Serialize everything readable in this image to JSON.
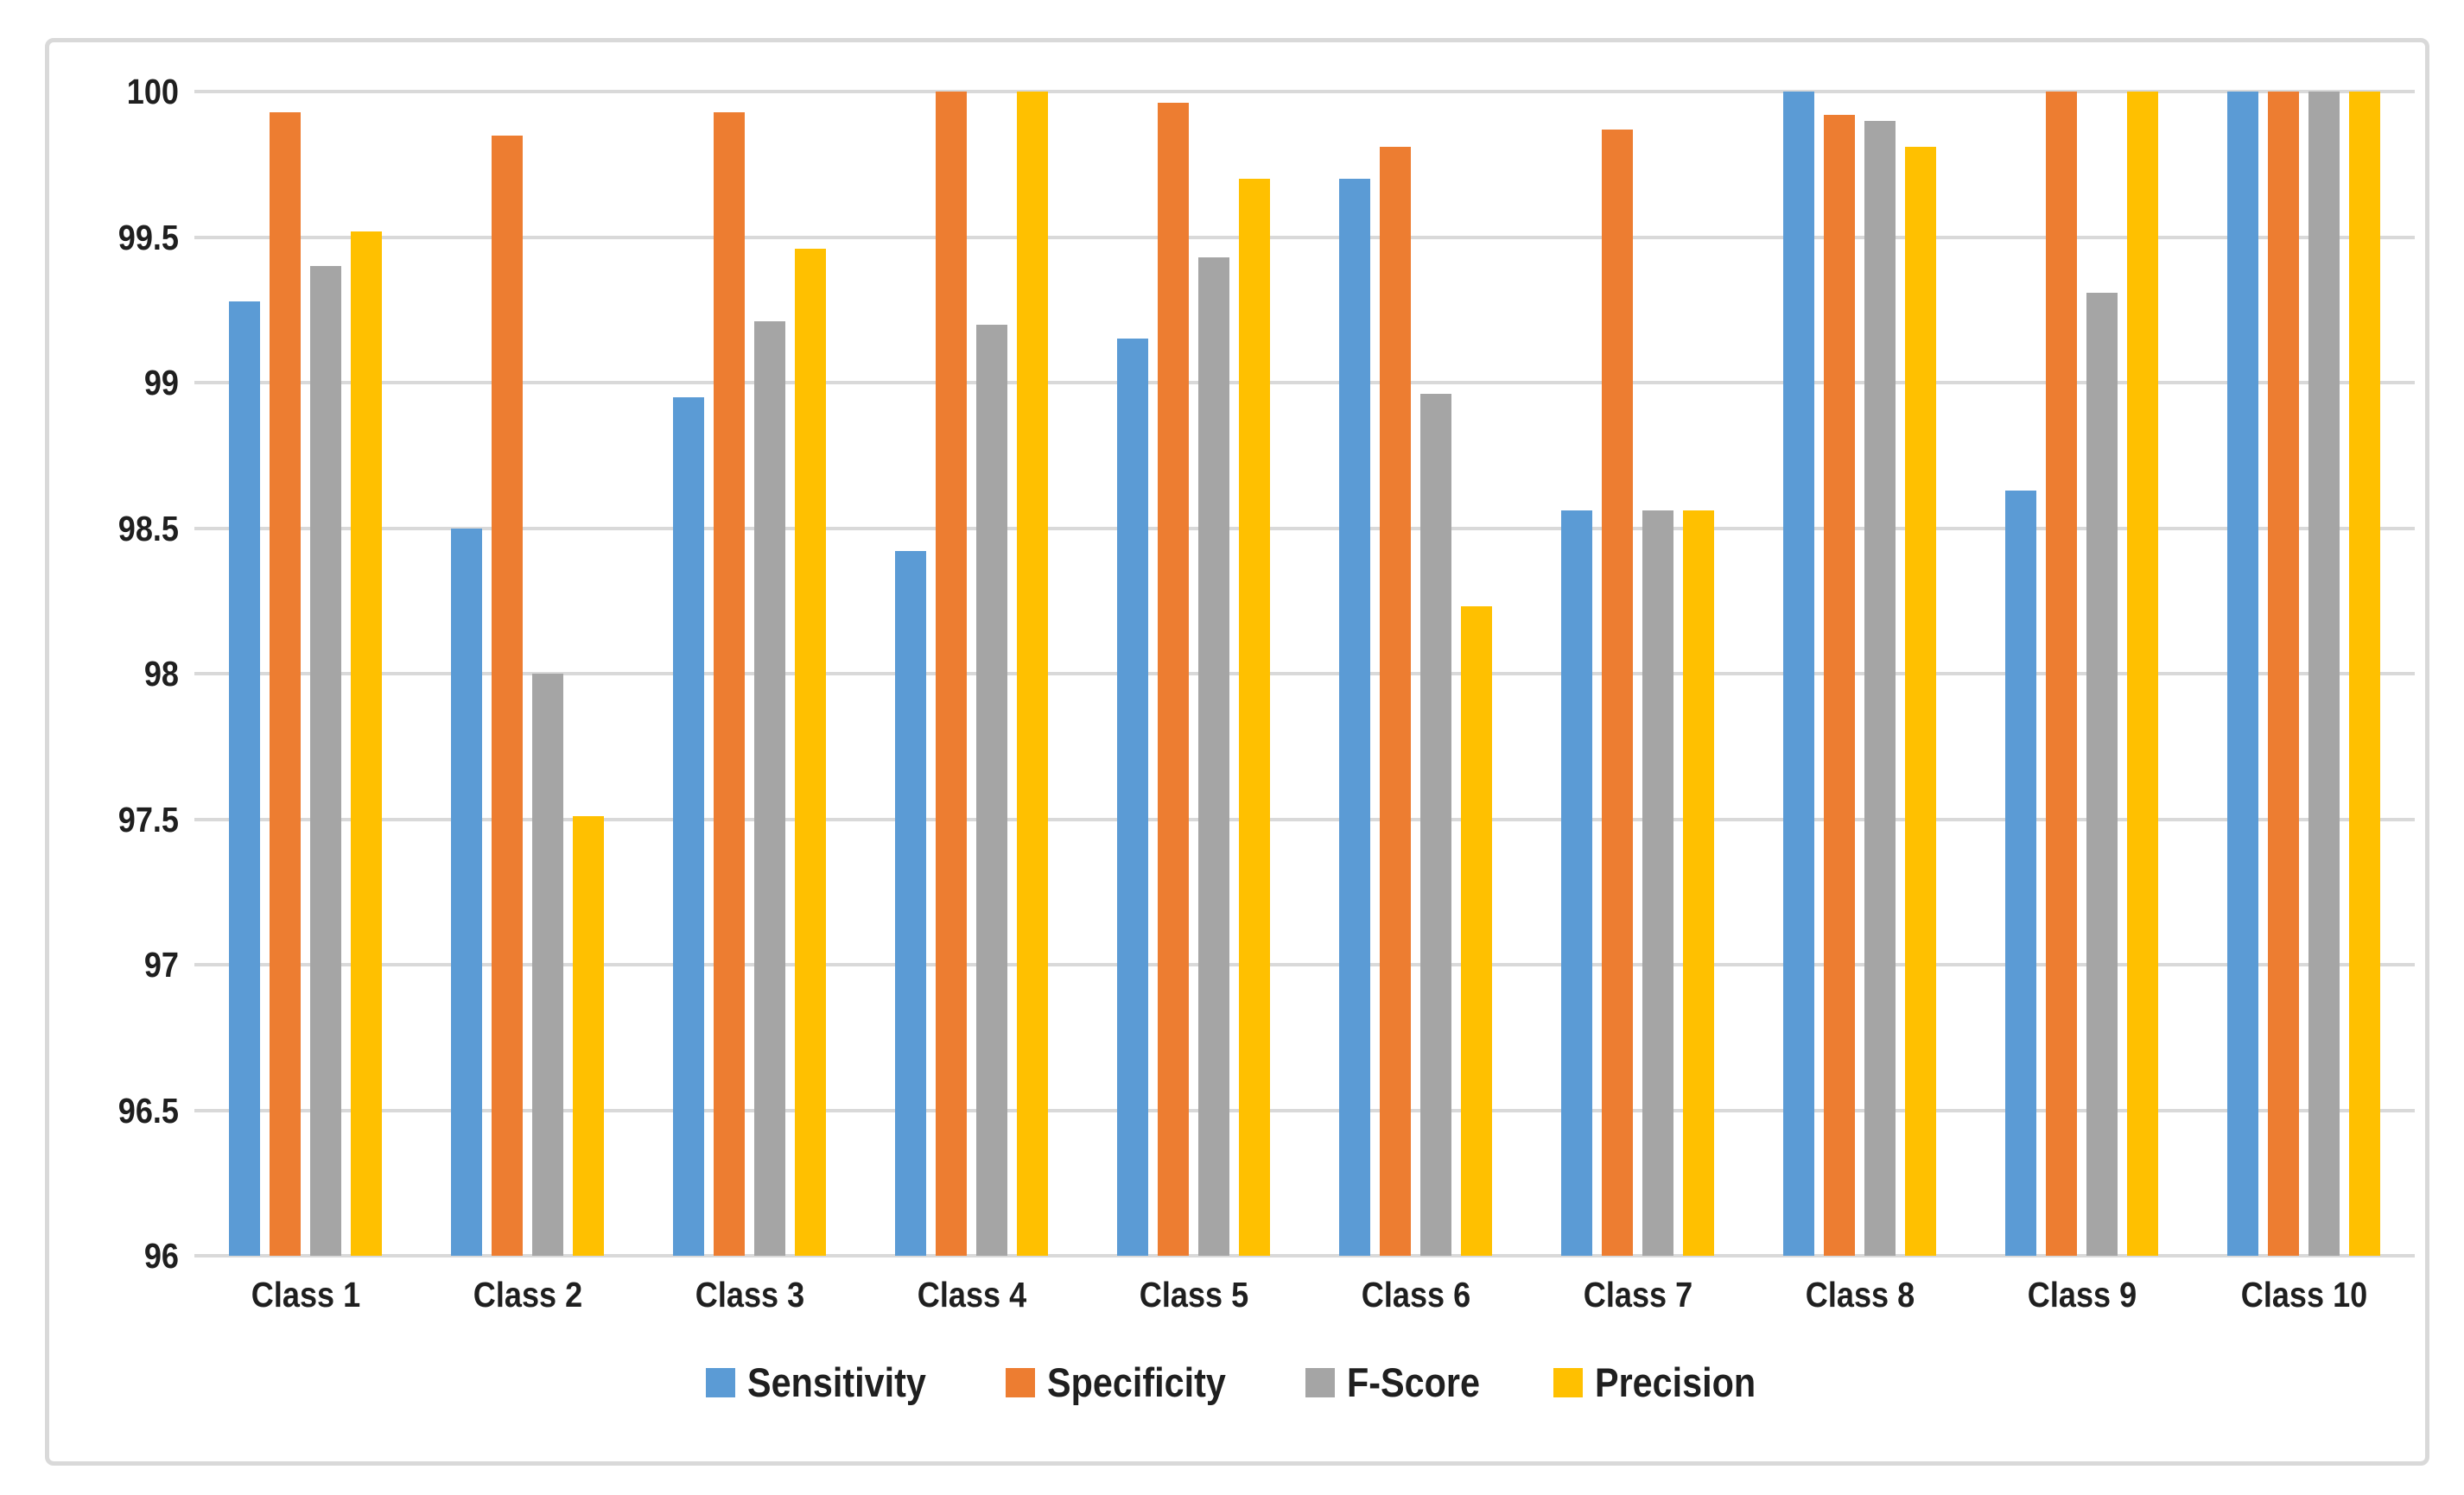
{
  "chart_data": {
    "type": "bar",
    "title": "",
    "xlabel": "",
    "ylabel": "",
    "categories": [
      "Class 1",
      "Class 2",
      "Class 3",
      "Class 4",
      "Class 5",
      "Class 6",
      "Class 7",
      "Class 8",
      "Class 9",
      "Class 10"
    ],
    "series": [
      {
        "name": "Sensitivity",
        "color": "#5B9BD5",
        "values": [
          99.28,
          98.5,
          98.95,
          98.42,
          99.15,
          99.7,
          98.56,
          100,
          98.63,
          100
        ]
      },
      {
        "name": "Specificity",
        "color": "#ED7D31",
        "values": [
          99.93,
          99.85,
          99.93,
          100,
          99.96,
          99.81,
          99.87,
          99.92,
          100,
          100
        ]
      },
      {
        "name": "F-Score",
        "color": "#A5A5A5",
        "values": [
          99.4,
          98.0,
          99.21,
          99.2,
          99.43,
          98.96,
          98.56,
          99.9,
          99.31,
          100
        ]
      },
      {
        "name": "Precision",
        "color": "#FFC000",
        "values": [
          99.52,
          97.51,
          99.46,
          100,
          99.7,
          98.23,
          98.56,
          99.81,
          100,
          100
        ]
      }
    ],
    "ylim": [
      96,
      100
    ],
    "ytick_step": 0.5,
    "ytick_labels": [
      "96",
      "96.5",
      "97",
      "97.5",
      "98",
      "98.5",
      "99",
      "99.5",
      "100"
    ],
    "grid": true,
    "legend_position": "bottom",
    "colors": {
      "frame_border": "#D9D9D9",
      "gridline": "#D9D9D9",
      "tick_text": "#1F1F1F",
      "background": "#FFFFFF"
    }
  }
}
